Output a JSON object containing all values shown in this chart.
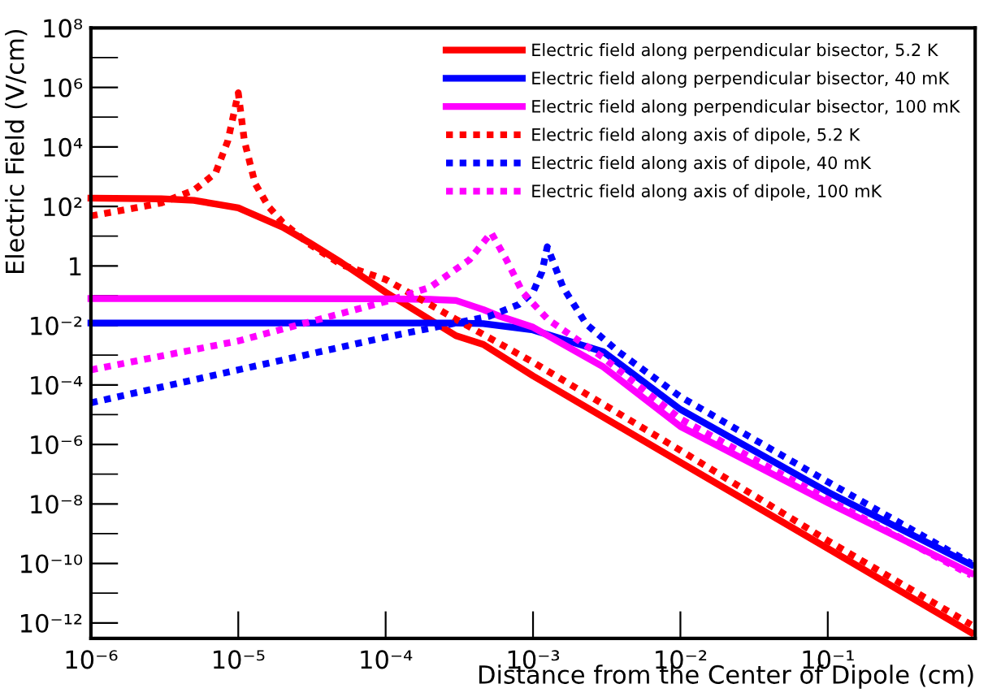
{
  "chart_data": {
    "type": "line",
    "xlabel": "Distance from the Center of Dipole (cm)",
    "ylabel": "Electric Field (V/cm)",
    "log": "xy",
    "grid": false,
    "legend": "top right",
    "marker": "none",
    "xlim": [
      1e-06,
      1
    ],
    "ylim": [
      3e-13,
      100000000.0
    ],
    "xticks": [
      {
        "value": 1e-06,
        "label": "10⁻⁶"
      },
      {
        "value": 1e-05,
        "label": "10⁻⁵"
      },
      {
        "value": 0.0001,
        "label": "10⁻⁴"
      },
      {
        "value": 0.001,
        "label": "10⁻³"
      },
      {
        "value": 0.01,
        "label": "10⁻²"
      },
      {
        "value": 0.1,
        "label": "10⁻¹"
      }
    ],
    "yticks": [
      {
        "value": 100000000.0,
        "label": "10⁸"
      },
      {
        "value": 1000000.0,
        "label": "10⁶"
      },
      {
        "value": 10000.0,
        "label": "10⁴"
      },
      {
        "value": 100.0,
        "label": "10²"
      },
      1,
      {
        "value": 0.01,
        "label": "10⁻²"
      },
      {
        "value": 0.0001,
        "label": "10⁻⁴"
      },
      {
        "value": 1e-06,
        "label": "10⁻⁶"
      },
      {
        "value": 1e-08,
        "label": "10⁻⁸"
      },
      {
        "value": 1e-10,
        "label": "10⁻¹⁰"
      },
      {
        "value": 1e-12,
        "label": "10⁻¹²"
      }
    ],
    "series": [
      {
        "name": "Electric field along perpendicular bisector, 5.2 K",
        "color": "#ff0000",
        "line_style": "solid",
        "x": [
          1e-06,
          3e-06,
          5e-06,
          1e-05,
          2e-05,
          3e-05,
          5e-05,
          0.0001,
          0.0003,
          0.00046,
          0.001,
          0.01,
          0.1,
          0.94
        ],
        "values": [
          190,
          180,
          160,
          89,
          20,
          6.3,
          1.3,
          0.13,
          0.0045,
          0.0023,
          0.0002,
          2.5e-07,
          3.2e-10,
          4.7e-13
        ]
      },
      {
        "name": "Electric field along perpendicular bisector, 40 mK",
        "color": "#0000ff",
        "line_style": "solid",
        "x": [
          1e-06,
          1e-05,
          0.0001,
          0.0003,
          0.00046,
          0.001,
          0.003,
          0.01,
          0.1,
          0.94
        ],
        "values": [
          0.012,
          0.012,
          0.012,
          0.012,
          0.0115,
          0.007,
          0.0013,
          1.5e-05,
          2.5e-08,
          9e-11
        ]
      },
      {
        "name": "Electric field along perpendicular bisector, 100 mK",
        "color": "#ff00ff",
        "line_style": "solid",
        "x": [
          1e-06,
          1e-05,
          0.0001,
          0.0002,
          0.0003,
          0.00046,
          0.0006,
          0.001,
          0.003,
          0.01,
          0.1,
          0.94
        ],
        "values": [
          0.08,
          0.08,
          0.078,
          0.075,
          0.069,
          0.034,
          0.02,
          0.0087,
          0.0004,
          4e-06,
          1.1e-08,
          4.7e-11
        ]
      },
      {
        "name": "Electric field along axis of dipole, 5.2 K",
        "color": "#ff0000",
        "line_style": "dotted",
        "x": [
          1e-06,
          2e-06,
          3e-06,
          5e-06,
          7e-06,
          8.5e-06,
          9.5e-06,
          1e-05,
          1.1e-05,
          1.3e-05,
          1.6e-05,
          2e-05,
          3e-05,
          5e-05,
          0.0001,
          0.0003,
          0.001,
          0.01,
          0.1,
          0.94
        ],
        "values": [
          48,
          89,
          130,
          350,
          1300,
          16000,
          200000,
          660000,
          16000,
          590,
          100,
          29,
          5.6,
          1.1,
          0.35,
          0.016,
          0.00058,
          6.3e-07,
          5.8e-10,
          8.7e-13
        ]
      },
      {
        "name": "Electric field along axis of dipole, 40 mK",
        "color": "#0000ff",
        "line_style": "dotted",
        "x": [
          1e-06,
          1e-05,
          0.0001,
          0.0005,
          0.0008,
          0.001,
          0.00115,
          0.00125,
          0.0016,
          0.0023,
          0.0038,
          0.01,
          0.1,
          0.94
        ],
        "values": [
          2.5e-05,
          0.00032,
          0.004,
          0.02,
          0.05,
          0.13,
          0.63,
          4.4,
          0.19,
          0.011,
          0.0013,
          4e-05,
          5.5e-08,
          1e-10
        ]
      },
      {
        "name": "Electric field along axis of dipole, 100 mK",
        "color": "#ff00ff",
        "line_style": "dotted",
        "x": [
          1e-06,
          1e-05,
          0.0001,
          0.0002,
          0.00037,
          0.00052,
          0.00066,
          0.00085,
          0.00126,
          0.00295,
          0.01,
          0.1,
          0.94
        ],
        "values": [
          0.00032,
          0.003,
          0.063,
          0.19,
          1.6,
          13,
          1.6,
          0.13,
          0.016,
          0.00087,
          7.2e-06,
          1.4e-08,
          4e-11
        ]
      }
    ]
  }
}
